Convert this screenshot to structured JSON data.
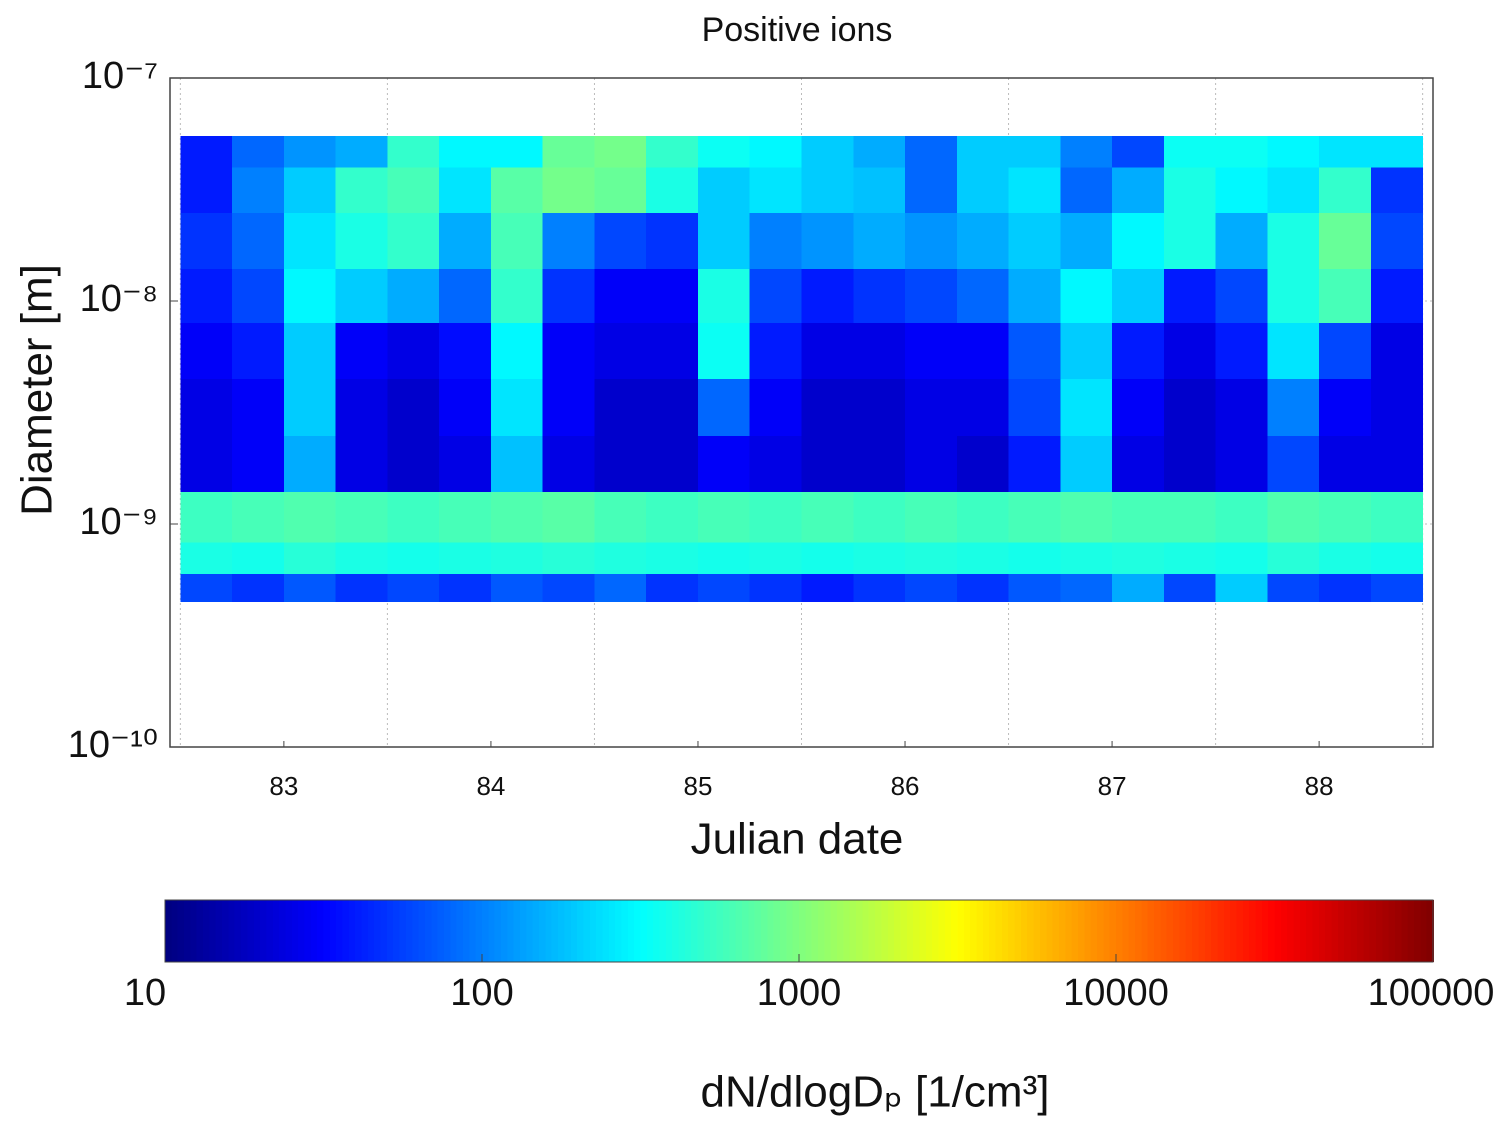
{
  "chart_data": {
    "type": "heatmap",
    "title": "Positive ions",
    "x_label": "Julian date",
    "y_label": "Diameter [m]",
    "colorbar_label": "dN/dlogDₚ [1/cm³]",
    "colormap": "jet",
    "ylog": true,
    "grid": true,
    "xlim": [
      82.45,
      88.55
    ],
    "xticks": [
      83,
      84,
      85,
      86,
      87,
      88
    ],
    "xgrid": [
      82.5,
      83.5,
      84.5,
      85.5,
      86.5,
      87.5,
      88.5
    ],
    "ylim": [
      1e-10,
      1e-07
    ],
    "yticks": [
      {
        "value": 1e-10,
        "label": "10⁻¹⁰"
      },
      {
        "value": 1e-09,
        "label": "10⁻⁹"
      },
      {
        "value": 1e-08,
        "label": "10⁻⁸"
      },
      {
        "value": 1e-07,
        "label": "10⁻⁷"
      }
    ],
    "clim": [
      10,
      100000
    ],
    "cticks": [
      10,
      100,
      1000,
      10000,
      100000
    ],
    "x_edges": [
      82.5,
      82.75,
      83,
      83.25,
      83.5,
      83.75,
      84,
      84.25,
      84.5,
      84.75,
      85,
      85.25,
      85.5,
      85.75,
      86,
      86.25,
      86.5,
      86.75,
      87,
      87.25,
      87.5,
      87.75,
      88,
      88.25,
      88.5
    ],
    "y_edges": [
      4.5e-10,
      6e-10,
      8.3e-10,
      1.4e-09,
      2.5e-09,
      4.5e-09,
      8e-09,
      1.4e-08,
      2.5e-08,
      4e-08,
      5.5e-08
    ],
    "z": [
      [
        60,
        50,
        70,
        50,
        60,
        50,
        70,
        60,
        80,
        50,
        60,
        50,
        40,
        50,
        60,
        50,
        70,
        80,
        150,
        60,
        200,
        60,
        50,
        60
      ],
      [
        400,
        380,
        450,
        400,
        380,
        400,
        420,
        450,
        420,
        400,
        380,
        400,
        380,
        400,
        420,
        400,
        380,
        400,
        420,
        400,
        380,
        450,
        400,
        380
      ],
      [
        550,
        600,
        650,
        600,
        550,
        600,
        650,
        700,
        600,
        550,
        600,
        550,
        600,
        550,
        600,
        550,
        600,
        650,
        600,
        600,
        550,
        650,
        600,
        550
      ],
      [
        25,
        30,
        150,
        25,
        20,
        25,
        180,
        25,
        20,
        20,
        30,
        25,
        20,
        20,
        25,
        20,
        40,
        200,
        25,
        20,
        25,
        60,
        25,
        25
      ],
      [
        25,
        30,
        200,
        25,
        20,
        30,
        250,
        30,
        20,
        20,
        80,
        30,
        20,
        20,
        25,
        25,
        60,
        250,
        30,
        20,
        25,
        100,
        30,
        25
      ],
      [
        30,
        40,
        200,
        30,
        25,
        35,
        300,
        30,
        25,
        25,
        350,
        40,
        25,
        25,
        30,
        30,
        70,
        200,
        40,
        25,
        40,
        250,
        60,
        25
      ],
      [
        40,
        60,
        300,
        200,
        150,
        80,
        500,
        50,
        30,
        30,
        400,
        60,
        40,
        50,
        60,
        80,
        150,
        300,
        200,
        40,
        60,
        400,
        600,
        40
      ],
      [
        50,
        80,
        250,
        400,
        500,
        150,
        600,
        100,
        60,
        50,
        200,
        100,
        120,
        150,
        120,
        150,
        200,
        150,
        300,
        400,
        150,
        400,
        800,
        60
      ],
      [
        40,
        100,
        200,
        500,
        600,
        250,
        700,
        900,
        800,
        400,
        200,
        250,
        200,
        180,
        80,
        200,
        250,
        80,
        150,
        400,
        300,
        250,
        500,
        50
      ],
      [
        40,
        80,
        120,
        150,
        500,
        300,
        300,
        800,
        900,
        500,
        350,
        300,
        200,
        150,
        80,
        200,
        200,
        100,
        60,
        350,
        350,
        300,
        250,
        250
      ]
    ]
  }
}
